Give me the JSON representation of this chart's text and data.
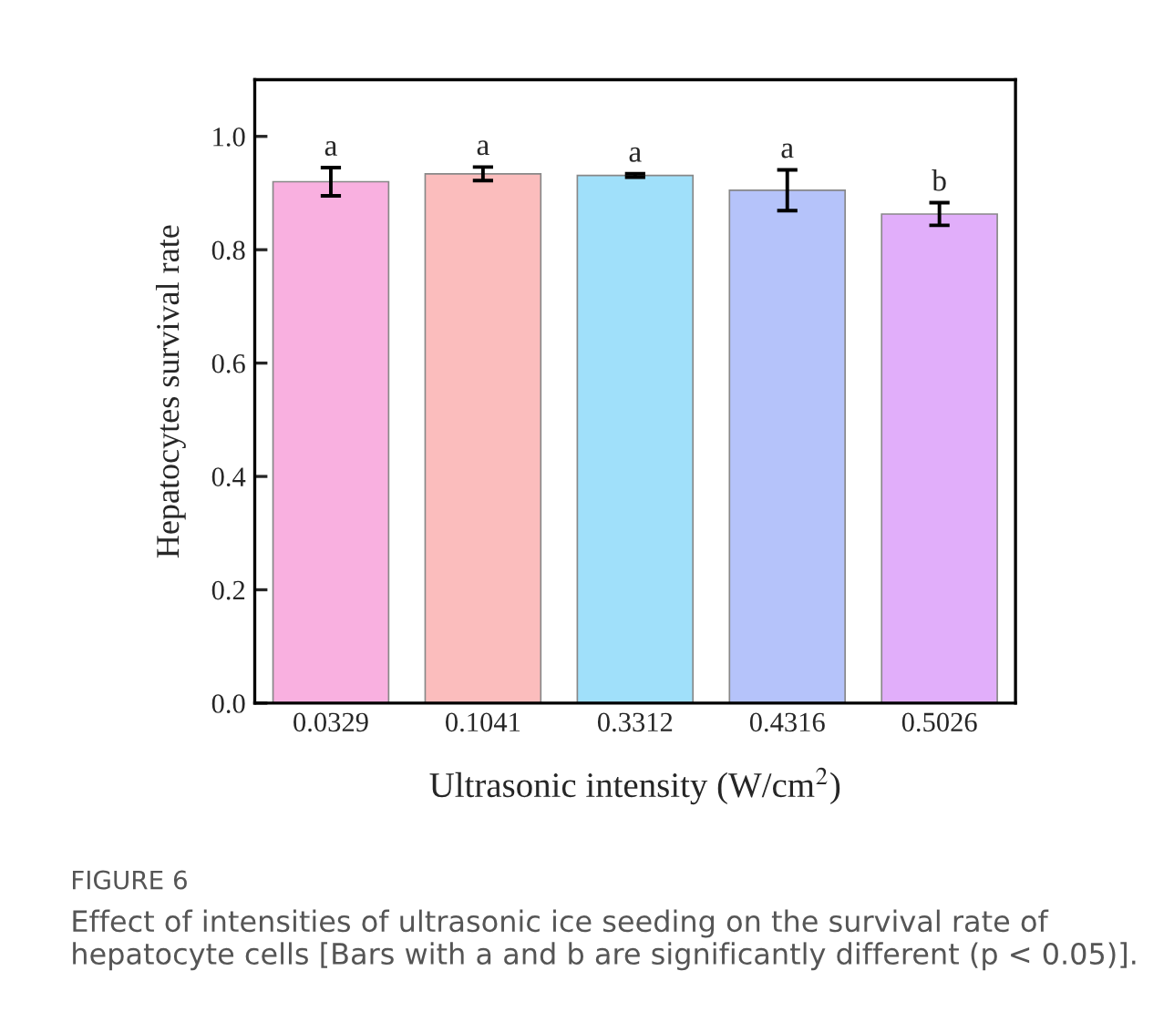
{
  "chart_data": {
    "type": "bar",
    "xlabel": "Ultrasonic intensity (W/cm$^{2}$)",
    "ylabel": "Hepatocytes survival rate",
    "categories": [
      "0.0329",
      "0.1041",
      "0.3312",
      "0.4316",
      "0.5026"
    ],
    "values": [
      0.92,
      0.934,
      0.931,
      0.905,
      0.863
    ],
    "errors": [
      0.025,
      0.012,
      0.003,
      0.036,
      0.02
    ],
    "colors": [
      "#f9b0e0",
      "#fbbdbd",
      "#a0e0fa",
      "#b5c3fa",
      "#e1aefa"
    ],
    "ylim": [
      0,
      1.1
    ],
    "yticks": [
      {
        "value": 0,
        "label": "0.0"
      },
      0.2,
      0.4,
      0.6,
      0.8,
      {
        "value": 1,
        "label": "1.0"
      }
    ],
    "grid": false,
    "annotations": [
      {
        "text": "a",
        "x": "0.0329",
        "y": 0.955
      },
      {
        "text": "a",
        "x": "0.1041",
        "y": 0.956
      },
      {
        "text": "a",
        "x": "0.3312",
        "y": 0.944
      },
      {
        "text": "a",
        "x": "0.4316",
        "y": 0.951
      },
      {
        "text": "b",
        "x": "0.5026",
        "y": 0.893
      },
      "FIGURE 6",
      "Effect of intensities of ultrasonic ice seeding on the survival rate of hepatocyte cells [Bars with a and b are significantly different (p < 0.05)]."
    ]
  }
}
